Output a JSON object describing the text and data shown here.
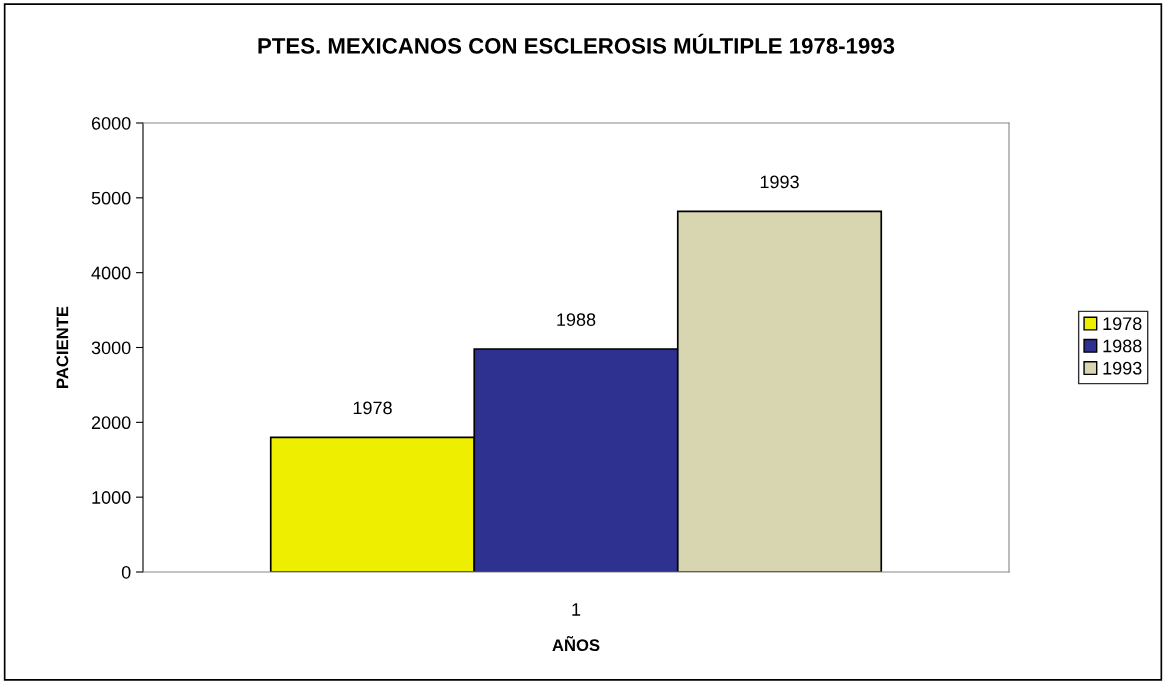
{
  "chart_data": {
    "type": "bar",
    "title": "PTES. MEXICANOS CON ESCLEROSIS MÚLTIPLE 1978-1993",
    "xlabel": "AÑOS",
    "ylabel": "PACIENTE",
    "categories": [
      "1"
    ],
    "series": [
      {
        "name": "1978",
        "color": "#eeee00",
        "values": [
          1800
        ]
      },
      {
        "name": "1988",
        "color": "#2e3190",
        "values": [
          2980
        ]
      },
      {
        "name": "1993",
        "color": "#d8d6b0",
        "values": [
          4820
        ]
      }
    ],
    "ylim": [
      0,
      6000
    ],
    "yticks": [
      0,
      1000,
      2000,
      3000,
      4000,
      5000,
      6000
    ],
    "grid": false,
    "legend": "right"
  }
}
